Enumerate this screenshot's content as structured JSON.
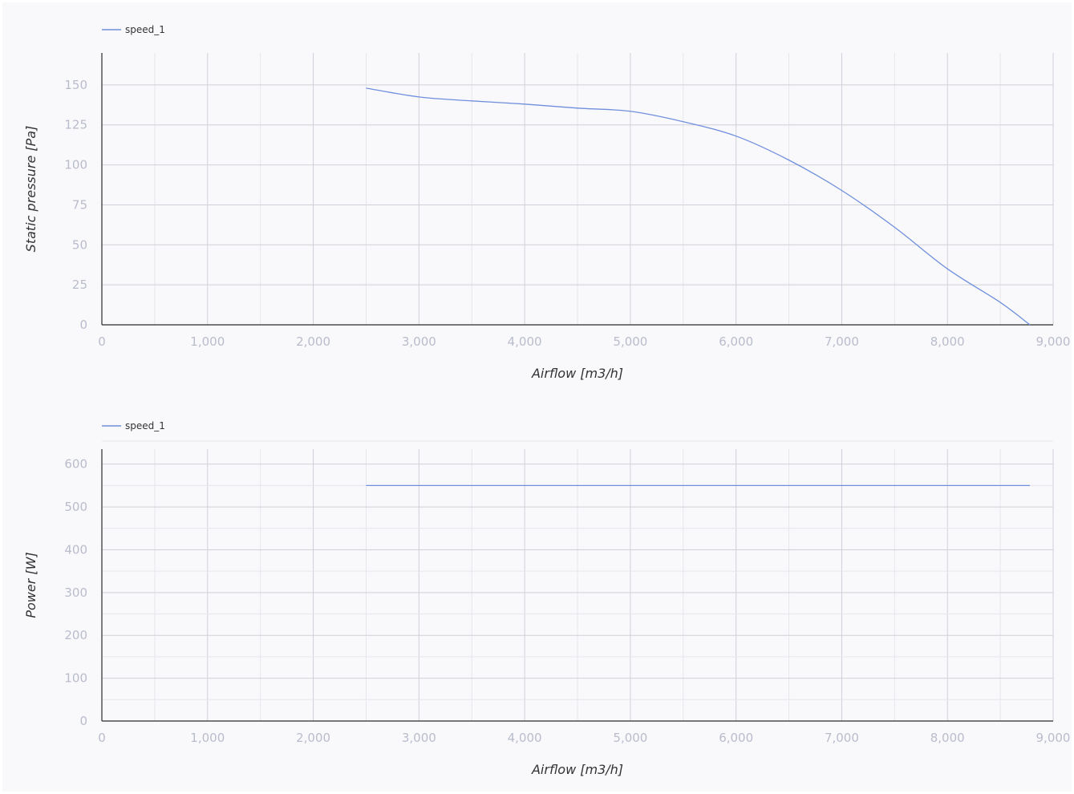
{
  "colors": {
    "series": "#6f8fdc",
    "axis": "#2b2b2b",
    "tick": "#b9bccb"
  },
  "chart_data": [
    {
      "type": "line",
      "xlabel": "Airflow [m3/h]",
      "ylabel": "Static pressure [Pa]",
      "xlim": [
        0,
        9000
      ],
      "ylim": [
        0,
        170
      ],
      "xticks": [
        0,
        1000,
        2000,
        3000,
        4000,
        5000,
        6000,
        7000,
        8000,
        9000
      ],
      "xtick_labels": [
        "0",
        "1,000",
        "2,000",
        "3,000",
        "4,000",
        "5,000",
        "6,000",
        "7,000",
        "8,000",
        "9,000"
      ],
      "yticks": [
        0,
        25,
        50,
        75,
        100,
        125,
        150
      ],
      "ytick_labels": [
        "0",
        "25",
        "50",
        "75",
        "100",
        "125",
        "150"
      ],
      "grid": true,
      "legend": "top-left",
      "series": [
        {
          "name": "speed_1",
          "x": [
            2500,
            3000,
            3500,
            4000,
            4500,
            5000,
            5500,
            6000,
            6500,
            7000,
            7500,
            8000,
            8500,
            8780
          ],
          "y": [
            148,
            142.5,
            140,
            138,
            135.5,
            133.5,
            127,
            118,
            103,
            84,
            61,
            35,
            14,
            0
          ]
        }
      ]
    },
    {
      "type": "line",
      "xlabel": "Airflow [m3/h]",
      "ylabel": "Power [W]",
      "xlim": [
        0,
        9000
      ],
      "ylim": [
        0,
        635
      ],
      "xticks": [
        0,
        1000,
        2000,
        3000,
        4000,
        5000,
        6000,
        7000,
        8000,
        9000
      ],
      "xtick_labels": [
        "0",
        "1,000",
        "2,000",
        "3,000",
        "4,000",
        "5,000",
        "6,000",
        "7,000",
        "8,000",
        "9,000"
      ],
      "yticks": [
        0,
        100,
        200,
        300,
        400,
        500,
        600
      ],
      "ytick_labels": [
        "0",
        "100",
        "200",
        "300",
        "400",
        "500",
        "600"
      ],
      "grid": true,
      "legend": "top-left",
      "series": [
        {
          "name": "speed_1",
          "x": [
            2500,
            8780
          ],
          "y": [
            550,
            550
          ]
        }
      ]
    }
  ]
}
